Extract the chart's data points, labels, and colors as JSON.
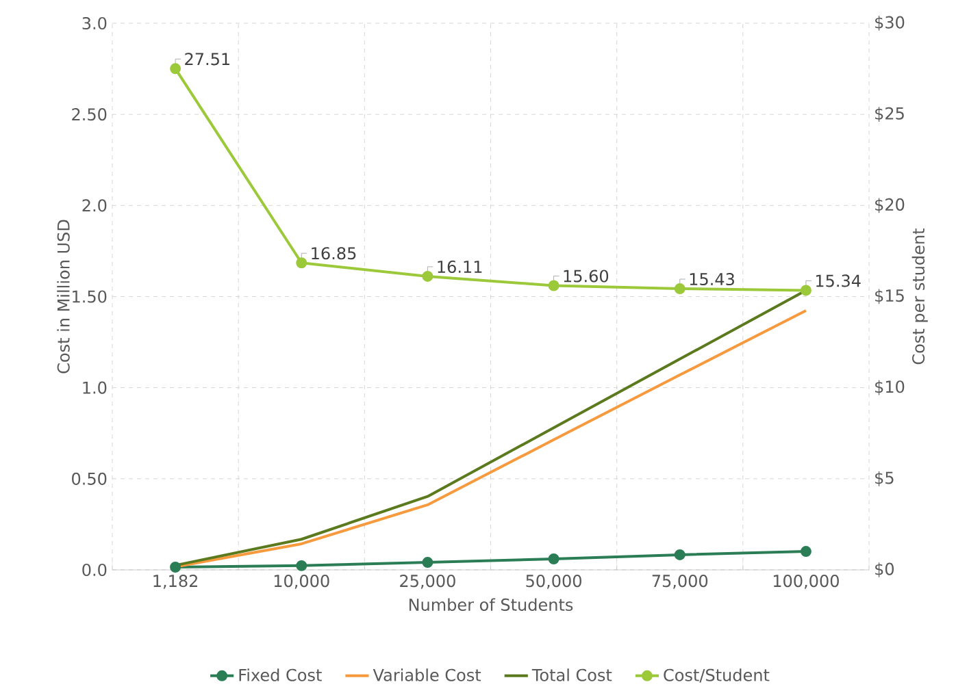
{
  "chart_data": {
    "type": "line",
    "xlabel": "Number of Students",
    "ylabel": "Cost in Million USD",
    "y2label": "Cost per student",
    "categories": [
      "1,182",
      "10,000",
      "25,000",
      "50,000",
      "75,000",
      "100,000"
    ],
    "ylim": [
      0,
      3
    ],
    "yticks": [
      {
        "value": 0,
        "label": "0.0"
      },
      {
        "value": 0.5,
        "label": "0.50"
      },
      {
        "value": 1,
        "label": "1.0"
      },
      {
        "value": 1.5,
        "label": "1.50"
      },
      {
        "value": 2,
        "label": "2.0"
      },
      {
        "value": 2.5,
        "label": "2.50"
      },
      {
        "value": 3,
        "label": "3.0"
      }
    ],
    "y2lim": [
      0,
      30
    ],
    "y2ticks": [
      {
        "value": 0,
        "label": "$0"
      },
      {
        "value": 5,
        "label": "$5"
      },
      {
        "value": 10,
        "label": "$10"
      },
      {
        "value": 15,
        "label": "$15"
      },
      {
        "value": 20,
        "label": "$20"
      },
      {
        "value": 25,
        "label": "$25"
      },
      {
        "value": 30,
        "label": "$30"
      }
    ],
    "grid": true,
    "legend": "bottom",
    "series": [
      {
        "name": "Fixed Cost",
        "color": "#2a7d55",
        "marker": "circle",
        "values": [
          0.015,
          0.023,
          0.041,
          0.06,
          0.083,
          0.101
        ]
      },
      {
        "name": "Variable Cost",
        "color": "#f79a3e",
        "marker": "none",
        "values": [
          0.017,
          0.143,
          0.357,
          0.714,
          1.07,
          1.423
        ]
      },
      {
        "name": "Total Cost",
        "color": "#5b7a1e",
        "marker": "none",
        "values": [
          0.025,
          0.168,
          0.403,
          0.78,
          1.157,
          1.534
        ]
      },
      {
        "name": "Cost/Student",
        "color": "#9bc93a",
        "marker": "circle",
        "axis": "y2",
        "values": [
          27.51,
          16.85,
          16.11,
          15.6,
          15.43,
          15.34
        ],
        "value_labels": [
          "27.51",
          "16.85",
          "16.11",
          "15.60",
          "15.43",
          "15.34"
        ]
      }
    ]
  }
}
